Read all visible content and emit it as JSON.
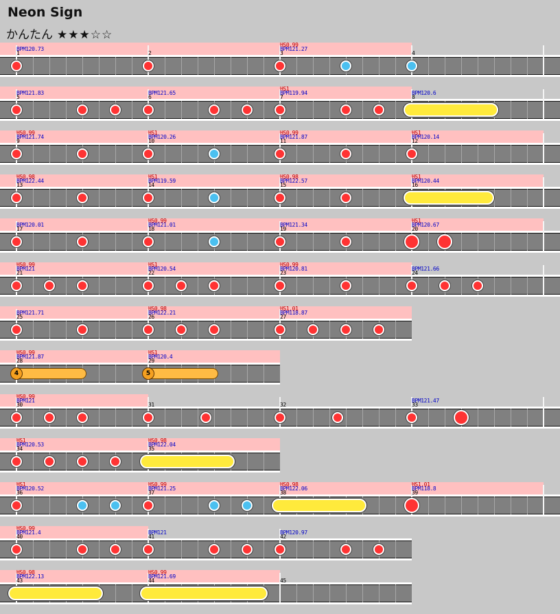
{
  "song": {
    "title": "Neon Sign",
    "course": "かんたん",
    "stars": "★★★☆☆",
    "level": 3,
    "max_level": 5
  },
  "colors": {
    "background": "#c8c8c8",
    "track": "#808080",
    "don": "#ff3333",
    "ka": "#4bc0f0",
    "roll": "#ffea3c",
    "balloon": "#ffbb44",
    "hs_text": "#c00000",
    "bpm_text": "#0000c8",
    "hs_highlight": "#ffc0c0"
  },
  "note_legend": {
    "d": "don",
    "k": "ka",
    "D": "big-don",
    "r": "drumroll",
    "b": "balloon"
  },
  "rows": [
    {
      "measures": [
        {
          "num": "1",
          "bpm": "BPM120.73",
          "hs": "",
          "notes": [
            [
              0,
              "d"
            ]
          ]
        },
        {
          "num": "2",
          "bpm": "",
          "hs": "",
          "notes": [
            [
              0,
              "d"
            ]
          ]
        },
        {
          "num": "3",
          "bpm": "BPM121.27",
          "hs": "HS0.99",
          "notes": [
            [
              0,
              "d"
            ],
            [
              4,
              "k"
            ]
          ]
        },
        {
          "num": "4",
          "bpm": "",
          "hs": "",
          "notes": [
            [
              0,
              "k"
            ]
          ]
        }
      ]
    },
    {
      "measures": [
        {
          "num": "5",
          "bpm": "BPM121.83",
          "hs": "",
          "notes": [
            [
              0,
              "d"
            ],
            [
              4,
              "d"
            ],
            [
              6,
              "d"
            ]
          ]
        },
        {
          "num": "6",
          "bpm": "BPM121.65",
          "hs": "",
          "notes": [
            [
              0,
              "d"
            ],
            [
              4,
              "d"
            ],
            [
              6,
              "d"
            ]
          ]
        },
        {
          "num": "7",
          "bpm": "BPM119.94",
          "hs": "HS1",
          "notes": [
            [
              0,
              "d"
            ],
            [
              4,
              "d"
            ],
            [
              6,
              "d"
            ]
          ]
        },
        {
          "num": "8",
          "bpm": "BPM120.6",
          "hs": "",
          "notes": [],
          "rolls": [
            [
              0,
              5.25
            ]
          ]
        }
      ]
    },
    {
      "measures": [
        {
          "num": "9",
          "bpm": "BPM121.74",
          "hs": "HS0.99",
          "notes": [
            [
              0,
              "d"
            ],
            [
              4,
              "d"
            ]
          ]
        },
        {
          "num": "10",
          "bpm": "BPM120.26",
          "hs": "HS1",
          "notes": [
            [
              0,
              "d"
            ],
            [
              4,
              "k"
            ]
          ]
        },
        {
          "num": "11",
          "bpm": "BPM121.87",
          "hs": "HS0.99",
          "notes": [
            [
              0,
              "d"
            ],
            [
              4,
              "d"
            ]
          ]
        },
        {
          "num": "12",
          "bpm": "BPM120.14",
          "hs": "HS1",
          "notes": [
            [
              0,
              "d"
            ]
          ]
        }
      ]
    },
    {
      "measures": [
        {
          "num": "13",
          "bpm": "BPM122.44",
          "hs": "HS0.98",
          "notes": [
            [
              0,
              "d"
            ],
            [
              4,
              "d"
            ]
          ]
        },
        {
          "num": "14",
          "bpm": "BPM119.59",
          "hs": "HS1",
          "notes": [
            [
              0,
              "d"
            ],
            [
              4,
              "k"
            ]
          ]
        },
        {
          "num": "15",
          "bpm": "BPM122.57",
          "hs": "HS0.98",
          "notes": [
            [
              0,
              "d"
            ],
            [
              4,
              "d"
            ]
          ]
        },
        {
          "num": "16",
          "bpm": "BPM120.44",
          "hs": "HS1",
          "notes": [],
          "rolls": [
            [
              0,
              5
            ]
          ]
        }
      ]
    },
    {
      "measures": [
        {
          "num": "17",
          "bpm": "BPM120.01",
          "hs": "",
          "notes": [
            [
              0,
              "d"
            ],
            [
              4,
              "d"
            ]
          ]
        },
        {
          "num": "18",
          "bpm": "BPM121.01",
          "hs": "HS0.99",
          "notes": [
            [
              0,
              "d"
            ],
            [
              4,
              "k"
            ]
          ]
        },
        {
          "num": "19",
          "bpm": "BPM121.34",
          "hs": "",
          "notes": [
            [
              0,
              "d"
            ],
            [
              4,
              "d"
            ]
          ]
        },
        {
          "num": "20",
          "bpm": "BPM120.67",
          "hs": "HS1",
          "notes": [
            [
              0,
              "D"
            ],
            [
              2,
              "D"
            ]
          ]
        }
      ]
    },
    {
      "measures": [
        {
          "num": "21",
          "bpm": "BPM121",
          "hs": "HS0.99",
          "notes": [
            [
              0,
              "d"
            ],
            [
              2,
              "d"
            ],
            [
              4,
              "d"
            ]
          ]
        },
        {
          "num": "22",
          "bpm": "BPM120.54",
          "hs": "HS1",
          "notes": [
            [
              0,
              "d"
            ],
            [
              2,
              "d"
            ],
            [
              4,
              "d"
            ]
          ]
        },
        {
          "num": "23",
          "bpm": "BPM120.81",
          "hs": "HS0.99",
          "notes": [
            [
              0,
              "d"
            ],
            [
              4,
              "d"
            ]
          ]
        },
        {
          "num": "24",
          "bpm": "BPM121.66",
          "hs": "",
          "notes": [
            [
              0,
              "d"
            ],
            [
              2,
              "d"
            ],
            [
              4,
              "d"
            ]
          ]
        }
      ]
    },
    {
      "measures": [
        {
          "num": "25",
          "bpm": "BPM121.71",
          "hs": "",
          "notes": [
            [
              0,
              "d"
            ],
            [
              4,
              "d"
            ]
          ]
        },
        {
          "num": "26",
          "bpm": "BPM122.21",
          "hs": "HS0.98",
          "notes": [
            [
              0,
              "d"
            ],
            [
              2,
              "d"
            ],
            [
              4,
              "d"
            ]
          ]
        },
        {
          "num": "27",
          "bpm": "BPM118.87",
          "hs": "HS1.01",
          "notes": [
            [
              0,
              "d"
            ],
            [
              2,
              "d"
            ],
            [
              4,
              "d"
            ],
            [
              6,
              "d"
            ]
          ]
        }
      ]
    },
    {
      "measures": [
        {
          "num": "28",
          "bpm": "BPM121.87",
          "hs": "HS0.99",
          "notes": [],
          "balloons": [
            [
              0,
              4.25,
              "4"
            ]
          ]
        },
        {
          "num": "29",
          "bpm": "BPM120.4",
          "hs": "HS1",
          "notes": [],
          "balloons": [
            [
              0,
              4.25,
              "5"
            ]
          ]
        }
      ]
    },
    {
      "measures": [
        {
          "num": "30",
          "bpm": "BPM121",
          "hs": "HS0.99",
          "notes": [
            [
              0,
              "d"
            ],
            [
              2,
              "d"
            ],
            [
              4,
              "d"
            ]
          ]
        },
        {
          "num": "31",
          "bpm": "",
          "hs": "",
          "notes": [
            [
              0,
              "d"
            ],
            [
              3.5,
              "d"
            ]
          ]
        },
        {
          "num": "32",
          "bpm": "",
          "hs": "",
          "notes": [
            [
              0,
              "d"
            ],
            [
              3.5,
              "d"
            ]
          ]
        },
        {
          "num": "33",
          "bpm": "BPM121.47",
          "hs": "",
          "notes": [
            [
              0,
              "d"
            ],
            [
              3,
              "D"
            ]
          ]
        }
      ]
    },
    {
      "measures": [
        {
          "num": "34",
          "bpm": "BPM120.53",
          "hs": "HS1",
          "notes": [
            [
              0,
              "d"
            ],
            [
              2,
              "d"
            ],
            [
              4,
              "d"
            ],
            [
              6,
              "d"
            ]
          ]
        },
        {
          "num": "35",
          "bpm": "BPM122.04",
          "hs": "HS0.98",
          "notes": [],
          "rolls": [
            [
              0,
              5.25
            ]
          ]
        }
      ]
    },
    {
      "measures": [
        {
          "num": "36",
          "bpm": "BPM120.52",
          "hs": "HS1",
          "notes": [
            [
              0,
              "d"
            ],
            [
              4,
              "k"
            ],
            [
              6,
              "k"
            ]
          ]
        },
        {
          "num": "37",
          "bpm": "BPM121.25",
          "hs": "HS0.99",
          "notes": [
            [
              0,
              "d"
            ],
            [
              4,
              "k"
            ],
            [
              6,
              "k"
            ]
          ]
        },
        {
          "num": "38",
          "bpm": "BPM122.06",
          "hs": "HS0.98",
          "notes": [],
          "rolls": [
            [
              0,
              5.25
            ]
          ]
        },
        {
          "num": "39",
          "bpm": "BPM118.8",
          "hs": "HS1.01",
          "notes": [
            [
              0,
              "D"
            ]
          ]
        }
      ]
    },
    {
      "measures": [
        {
          "num": "40",
          "bpm": "BPM121.4",
          "hs": "HS0.99",
          "notes": [
            [
              0,
              "d"
            ],
            [
              4,
              "d"
            ],
            [
              6,
              "d"
            ]
          ]
        },
        {
          "num": "41",
          "bpm": "BPM121",
          "hs": "",
          "notes": [
            [
              0,
              "d"
            ],
            [
              4,
              "d"
            ],
            [
              6,
              "d"
            ]
          ]
        },
        {
          "num": "42",
          "bpm": "BPM120.97",
          "hs": "",
          "notes": [
            [
              0,
              "d"
            ],
            [
              4,
              "d"
            ],
            [
              6,
              "d"
            ]
          ]
        }
      ]
    },
    {
      "measures": [
        {
          "num": "43",
          "bpm": "BPM122.13",
          "hs": "HS0.98",
          "notes": [],
          "rolls": [
            [
              0,
              5.25
            ]
          ]
        },
        {
          "num": "44",
          "bpm": "BPM121.69",
          "hs": "HS0.99",
          "notes": [],
          "rolls": [
            [
              0,
              7.25
            ]
          ]
        },
        {
          "num": "45",
          "bpm": "",
          "hs": "",
          "notes": []
        }
      ]
    }
  ]
}
